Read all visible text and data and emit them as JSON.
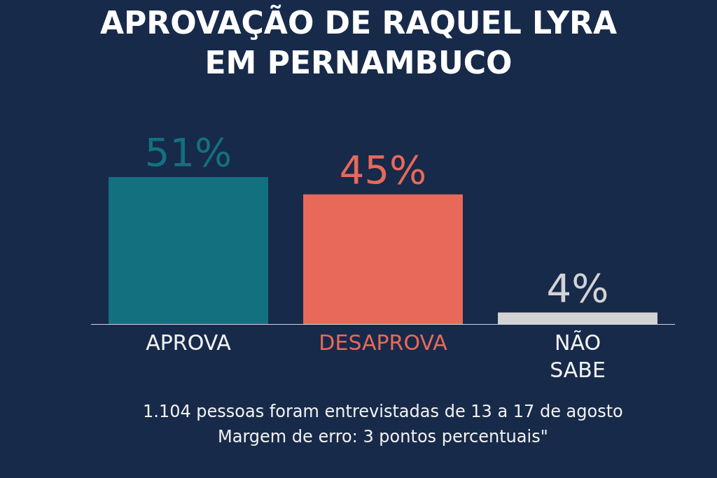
{
  "chart_data": {
    "type": "bar",
    "title": "APROVAÇÃO DE RAQUEL LYRA\nEM PERNAMBUCO",
    "categories": [
      "APROVA",
      "DESAPROVA",
      "NÃO SABE"
    ],
    "values": [
      51,
      45,
      4
    ],
    "colors": [
      "#13717f",
      "#e8695a",
      "#d3d3d3"
    ],
    "value_labels": [
      "51%",
      "45%",
      "4%"
    ],
    "legend": false,
    "annotations": [
      "1.104 pessoas foram entrevistadas de 13 a 17 de agosto",
      "Margem de erro: 3 pontos percentuais\""
    ]
  }
}
